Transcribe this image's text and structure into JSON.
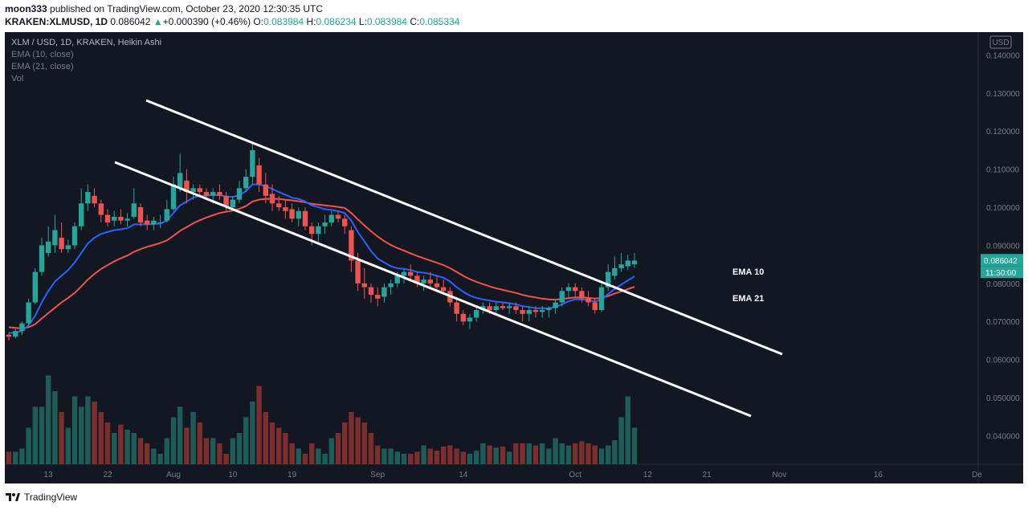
{
  "header": {
    "author": "moon333",
    "published_text": "published on TradingView.com, October 23, 2020 12:30:35 UTC",
    "symbol": "KRAKEN:XLMUSD, 1D",
    "last_price": "0.086042",
    "triangle": "▲",
    "change": "+0.000390 (+0.46%)",
    "o_label": "O:",
    "o_value": "0.083984",
    "h_label": "H:",
    "h_value": "0.086234",
    "l_label": "L:",
    "l_value": "0.083984",
    "c_label": "C:",
    "c_value": "0.085334"
  },
  "legend": {
    "main": "XLM / USD, 1D, KRAKEN, Heikin Ashi",
    "ema10": "EMA (10, close)",
    "ema21": "EMA (21, close)",
    "vol": "Vol"
  },
  "footer": {
    "brand": "TradingView"
  },
  "colors": {
    "background": "#131722",
    "up": "#26a69a",
    "down": "#ef5350",
    "vol_up": "#1e5c58",
    "vol_down": "#7a2e2e",
    "ema10": "#2962ff",
    "ema21": "#ef5350",
    "channel": "#ffffff",
    "axis_text": "#787b86"
  },
  "chart_data": {
    "type": "candlestick",
    "title": "XLM / USD, 1D, KRAKEN, Heikin Ashi",
    "currency_label": "USD",
    "ylim": [
      0.0325,
      0.146
    ],
    "y_ticks": [
      "0.040000",
      "0.050000",
      "0.060000",
      "0.070000",
      "0.080000",
      "0.090000",
      "0.100000",
      "0.110000",
      "0.120000",
      "0.130000",
      "0.140000"
    ],
    "x_tick_labels": [
      {
        "day": 6,
        "label": "13"
      },
      {
        "day": 15,
        "label": "22"
      },
      {
        "day": 25,
        "label": "Aug"
      },
      {
        "day": 34,
        "label": "10"
      },
      {
        "day": 43,
        "label": "19"
      },
      {
        "day": 56,
        "label": "Sep"
      },
      {
        "day": 69,
        "label": "14"
      },
      {
        "day": 86,
        "label": "Oct"
      },
      {
        "day": 97,
        "label": "12"
      },
      {
        "day": 106,
        "label": "21"
      },
      {
        "day": 117,
        "label": "Nov"
      },
      {
        "day": 132,
        "label": "16"
      },
      {
        "day": 147,
        "label": "De"
      }
    ],
    "candles": [
      [
        0.0665,
        0.067,
        0.065,
        0.066
      ],
      [
        0.066,
        0.068,
        0.0655,
        0.0675
      ],
      [
        0.0675,
        0.07,
        0.0665,
        0.0695
      ],
      [
        0.0695,
        0.076,
        0.069,
        0.075
      ],
      [
        0.075,
        0.084,
        0.0745,
        0.083
      ],
      [
        0.083,
        0.092,
        0.082,
        0.09
      ],
      [
        0.088,
        0.095,
        0.087,
        0.091
      ],
      [
        0.09,
        0.098,
        0.088,
        0.094
      ],
      [
        0.092,
        0.096,
        0.088,
        0.089
      ],
      [
        0.089,
        0.0915,
        0.088,
        0.09
      ],
      [
        0.09,
        0.096,
        0.089,
        0.095
      ],
      [
        0.095,
        0.105,
        0.094,
        0.101
      ],
      [
        0.101,
        0.106,
        0.099,
        0.104
      ],
      [
        0.103,
        0.105,
        0.1,
        0.101
      ],
      [
        0.101,
        0.102,
        0.096,
        0.098
      ],
      [
        0.098,
        0.0995,
        0.095,
        0.096
      ],
      [
        0.0965,
        0.099,
        0.095,
        0.0975
      ],
      [
        0.0975,
        0.0995,
        0.0955,
        0.0965
      ],
      [
        0.0965,
        0.0985,
        0.095,
        0.097
      ],
      [
        0.0975,
        0.105,
        0.097,
        0.101
      ],
      [
        0.1,
        0.101,
        0.095,
        0.096
      ],
      [
        0.0965,
        0.098,
        0.094,
        0.0955
      ],
      [
        0.0955,
        0.0975,
        0.094,
        0.0965
      ],
      [
        0.096,
        0.098,
        0.0945,
        0.096
      ],
      [
        0.0965,
        0.102,
        0.096,
        0.0995
      ],
      [
        0.0995,
        0.108,
        0.099,
        0.106
      ],
      [
        0.105,
        0.114,
        0.104,
        0.109
      ],
      [
        0.107,
        0.11,
        0.101,
        0.104
      ],
      [
        0.104,
        0.106,
        0.102,
        0.105
      ],
      [
        0.105,
        0.106,
        0.103,
        0.104
      ],
      [
        0.104,
        0.105,
        0.102,
        0.103
      ],
      [
        0.103,
        0.105,
        0.101,
        0.104
      ],
      [
        0.104,
        0.106,
        0.102,
        0.103
      ],
      [
        0.103,
        0.104,
        0.099,
        0.1
      ],
      [
        0.1,
        0.103,
        0.099,
        0.102
      ],
      [
        0.102,
        0.107,
        0.101,
        0.105
      ],
      [
        0.105,
        0.11,
        0.104,
        0.108
      ],
      [
        0.108,
        0.117,
        0.106,
        0.115
      ],
      [
        0.111,
        0.113,
        0.104,
        0.106
      ],
      [
        0.106,
        0.109,
        0.101,
        0.103
      ],
      [
        0.1035,
        0.106,
        0.099,
        0.101
      ],
      [
        0.101,
        0.103,
        0.099,
        0.1
      ],
      [
        0.1,
        0.102,
        0.097,
        0.099
      ],
      [
        0.0995,
        0.101,
        0.096,
        0.097
      ],
      [
        0.097,
        0.1,
        0.095,
        0.099
      ],
      [
        0.099,
        0.1,
        0.094,
        0.095
      ],
      [
        0.095,
        0.096,
        0.09,
        0.093
      ],
      [
        0.093,
        0.096,
        0.091,
        0.095
      ],
      [
        0.095,
        0.098,
        0.093,
        0.096
      ],
      [
        0.096,
        0.099,
        0.095,
        0.098
      ],
      [
        0.098,
        0.099,
        0.096,
        0.097
      ],
      [
        0.097,
        0.098,
        0.093,
        0.095
      ],
      [
        0.094,
        0.095,
        0.083,
        0.086
      ],
      [
        0.086,
        0.088,
        0.078,
        0.08
      ],
      [
        0.08,
        0.084,
        0.076,
        0.079
      ],
      [
        0.079,
        0.08,
        0.075,
        0.077
      ],
      [
        0.077,
        0.079,
        0.074,
        0.076
      ],
      [
        0.0765,
        0.08,
        0.075,
        0.079
      ],
      [
        0.079,
        0.081,
        0.077,
        0.08
      ],
      [
        0.08,
        0.083,
        0.079,
        0.082
      ],
      [
        0.082,
        0.084,
        0.08,
        0.083
      ],
      [
        0.083,
        0.085,
        0.081,
        0.082
      ],
      [
        0.082,
        0.083,
        0.079,
        0.08
      ],
      [
        0.08,
        0.082,
        0.078,
        0.081
      ],
      [
        0.081,
        0.083,
        0.079,
        0.08
      ],
      [
        0.08,
        0.082,
        0.078,
        0.079
      ],
      [
        0.079,
        0.081,
        0.077,
        0.078
      ],
      [
        0.078,
        0.079,
        0.074,
        0.075
      ],
      [
        0.075,
        0.076,
        0.07,
        0.072
      ],
      [
        0.072,
        0.073,
        0.069,
        0.07
      ],
      [
        0.07,
        0.072,
        0.068,
        0.071
      ],
      [
        0.071,
        0.074,
        0.07,
        0.073
      ],
      [
        0.073,
        0.075,
        0.072,
        0.074
      ],
      [
        0.074,
        0.075,
        0.072,
        0.073
      ],
      [
        0.073,
        0.075,
        0.072,
        0.074
      ],
      [
        0.074,
        0.075,
        0.073,
        0.0735
      ],
      [
        0.0735,
        0.075,
        0.072,
        0.074
      ],
      [
        0.074,
        0.075,
        0.072,
        0.073
      ],
      [
        0.073,
        0.074,
        0.07,
        0.072
      ],
      [
        0.072,
        0.074,
        0.07,
        0.073
      ],
      [
        0.073,
        0.074,
        0.071,
        0.0725
      ],
      [
        0.0725,
        0.074,
        0.071,
        0.073
      ],
      [
        0.073,
        0.074,
        0.071,
        0.0735
      ],
      [
        0.0735,
        0.076,
        0.072,
        0.075
      ],
      [
        0.075,
        0.079,
        0.074,
        0.078
      ],
      [
        0.078,
        0.08,
        0.076,
        0.079
      ],
      [
        0.079,
        0.08,
        0.076,
        0.078
      ],
      [
        0.078,
        0.079,
        0.075,
        0.076
      ],
      [
        0.076,
        0.078,
        0.074,
        0.075
      ],
      [
        0.075,
        0.076,
        0.072,
        0.073
      ],
      [
        0.073,
        0.08,
        0.0725,
        0.079
      ],
      [
        0.079,
        0.085,
        0.078,
        0.083
      ],
      [
        0.082,
        0.087,
        0.081,
        0.084
      ],
      [
        0.084,
        0.088,
        0.083,
        0.085
      ],
      [
        0.0845,
        0.0875,
        0.0835,
        0.086
      ],
      [
        0.085,
        0.088,
        0.084,
        0.086
      ]
    ],
    "series": [
      {
        "name": "EMA 10",
        "values": [
          0.067,
          0.067,
          0.0675,
          0.069,
          0.0715,
          0.075,
          0.078,
          0.0805,
          0.082,
          0.0835,
          0.0855,
          0.088,
          0.0905,
          0.092,
          0.093,
          0.0935,
          0.094,
          0.0942,
          0.0945,
          0.0955,
          0.0955,
          0.0955,
          0.0956,
          0.0957,
          0.0965,
          0.0985,
          0.1005,
          0.1015,
          0.1025,
          0.103,
          0.103,
          0.1032,
          0.1032,
          0.1028,
          0.1027,
          0.1032,
          0.1042,
          0.106,
          0.106,
          0.1055,
          0.1048,
          0.104,
          0.1033,
          0.1025,
          0.1022,
          0.1015,
          0.1005,
          0.1,
          0.0995,
          0.0993,
          0.099,
          0.0985,
          0.0965,
          0.0935,
          0.091,
          0.0885,
          0.0865,
          0.0855,
          0.0845,
          0.084,
          0.0838,
          0.0835,
          0.083,
          0.0828,
          0.0825,
          0.082,
          0.0815,
          0.0805,
          0.079,
          0.0778,
          0.0768,
          0.0762,
          0.0758,
          0.0755,
          0.0752,
          0.075,
          0.0748,
          0.0745,
          0.074,
          0.0738,
          0.0735,
          0.0735,
          0.0735,
          0.0738,
          0.0745,
          0.0753,
          0.0758,
          0.0758,
          0.0756,
          0.0752,
          0.0758,
          0.0772,
          0.0785,
          0.0797,
          0.0808,
          0.0818
        ]
      },
      {
        "name": "EMA 21",
        "values": [
          0.0685,
          0.0683,
          0.0682,
          0.0685,
          0.0693,
          0.0708,
          0.0722,
          0.0736,
          0.075,
          0.0762,
          0.0775,
          0.0792,
          0.081,
          0.0825,
          0.0838,
          0.0848,
          0.0858,
          0.0866,
          0.0873,
          0.0883,
          0.089,
          0.0896,
          0.0901,
          0.0906,
          0.0913,
          0.0925,
          0.0938,
          0.0948,
          0.0958,
          0.0966,
          0.0973,
          0.0979,
          0.0985,
          0.0988,
          0.0991,
          0.0996,
          0.1003,
          0.1015,
          0.102,
          0.1022,
          0.1022,
          0.1022,
          0.102,
          0.1018,
          0.1016,
          0.1013,
          0.1009,
          0.1007,
          0.1005,
          0.1003,
          0.1001,
          0.0998,
          0.0985,
          0.0968,
          0.0952,
          0.0937,
          0.0923,
          0.0911,
          0.0901,
          0.0893,
          0.0886,
          0.0879,
          0.0872,
          0.0866,
          0.086,
          0.0854,
          0.0848,
          0.084,
          0.083,
          0.082,
          0.0811,
          0.0804,
          0.0798,
          0.0792,
          0.0787,
          0.0783,
          0.0779,
          0.0775,
          0.077,
          0.0766,
          0.0763,
          0.076,
          0.0758,
          0.0757,
          0.0759,
          0.0761,
          0.0763,
          0.0763,
          0.0762,
          0.076,
          0.0762,
          0.0767,
          0.0773,
          0.0779,
          0.0785,
          0.0791
        ]
      }
    ],
    "volume": [
      0.12,
      0.12,
      0.15,
      0.35,
      0.55,
      0.55,
      0.85,
      0.7,
      0.5,
      0.35,
      0.65,
      0.55,
      0.65,
      0.6,
      0.5,
      0.4,
      0.3,
      0.38,
      0.33,
      0.3,
      0.25,
      0.2,
      0.15,
      0.1,
      0.25,
      0.45,
      0.55,
      0.35,
      0.5,
      0.4,
      0.25,
      0.25,
      0.2,
      0.1,
      0.25,
      0.3,
      0.45,
      0.6,
      0.75,
      0.5,
      0.4,
      0.35,
      0.3,
      0.2,
      0.15,
      0.1,
      0.2,
      0.15,
      0.1,
      0.25,
      0.3,
      0.4,
      0.5,
      0.45,
      0.4,
      0.3,
      0.18,
      0.15,
      0.15,
      0.12,
      0.1,
      0.1,
      0.12,
      0.18,
      0.15,
      0.13,
      0.17,
      0.18,
      0.15,
      0.12,
      0.1,
      0.13,
      0.2,
      0.18,
      0.16,
      0.17,
      0.12,
      0.2,
      0.2,
      0.2,
      0.18,
      0.2,
      0.15,
      0.25,
      0.2,
      0.18,
      0.2,
      0.22,
      0.2,
      0.18,
      0.15,
      0.18,
      0.23,
      0.45,
      0.65,
      0.35
    ]
  },
  "annotations": {
    "ema10_label": "EMA 10",
    "ema21_label": "EMA 21",
    "price_tag": "0.086042",
    "time_tag": "11:30:00"
  }
}
